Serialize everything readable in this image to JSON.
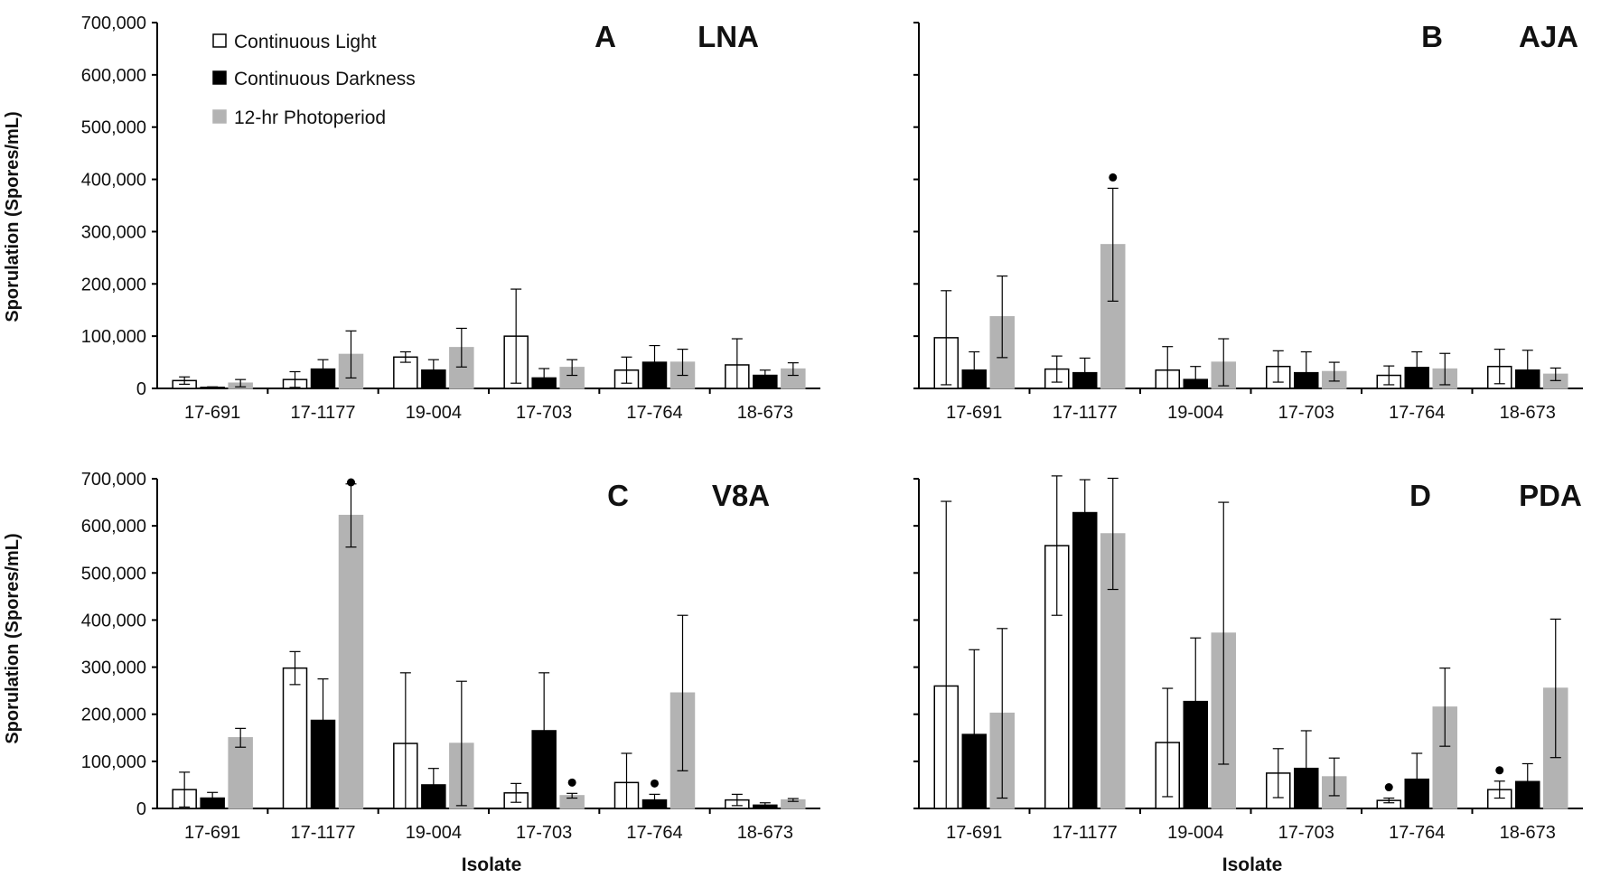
{
  "figure": {
    "x_axis_label": "Isolate",
    "y_axis_label": "Sporulation (Spores/mL)"
  },
  "legend": [
    {
      "name": "Continuous Light",
      "color": "#ffffff"
    },
    {
      "name": "Continuous Darkness",
      "color": "#000000"
    },
    {
      "name": "12-hr Photoperiod",
      "color": "#b3b3b3"
    }
  ],
  "chart_data": [
    {
      "type": "bar",
      "panel": "A",
      "medium": "LNA",
      "categories": [
        "17-691",
        "17-1177",
        "19-004",
        "17-703",
        "17-764",
        "18-673"
      ],
      "ylim": [
        0,
        700000
      ],
      "yticks": [
        "0",
        "100,000",
        "200,000",
        "300,000",
        "400,000",
        "500,000",
        "600,000",
        "700,000"
      ],
      "xlabel": "",
      "ylabel": "Sporulation (Spores/mL)",
      "series": [
        {
          "name": "Continuous Light",
          "values": [
            15000,
            17000,
            60000,
            100000,
            35000,
            45000
          ],
          "errors": [
            7000,
            15000,
            10000,
            90000,
            25000,
            50000
          ]
        },
        {
          "name": "Continuous Darkness",
          "values": [
            2000,
            37000,
            35000,
            20000,
            50000,
            25000
          ],
          "errors": [
            1000,
            18000,
            20000,
            18000,
            32000,
            10000
          ]
        },
        {
          "name": "12-hr Photoperiod",
          "values": [
            10000,
            65000,
            78000,
            40000,
            50000,
            37000
          ],
          "errors": [
            7000,
            45000,
            37000,
            15000,
            25000,
            12000
          ]
        }
      ],
      "significance": []
    },
    {
      "type": "bar",
      "panel": "B",
      "medium": "AJA",
      "categories": [
        "17-691",
        "17-1177",
        "19-004",
        "17-703",
        "17-764",
        "18-673"
      ],
      "ylim": [
        0,
        700000
      ],
      "yticks": [],
      "xlabel": "",
      "ylabel": "",
      "series": [
        {
          "name": "Continuous Light",
          "values": [
            97000,
            37000,
            35000,
            42000,
            25000,
            42000
          ],
          "errors": [
            90000,
            25000,
            45000,
            30000,
            18000,
            33000
          ]
        },
        {
          "name": "Continuous Darkness",
          "values": [
            35000,
            30000,
            17000,
            30000,
            40000,
            35000
          ],
          "errors": [
            35000,
            28000,
            25000,
            40000,
            30000,
            38000
          ]
        },
        {
          "name": "12-hr Photoperiod",
          "values": [
            137000,
            275000,
            50000,
            32000,
            37000,
            27000
          ],
          "errors": [
            78000,
            108000,
            45000,
            18000,
            30000,
            12000
          ]
        }
      ],
      "significance": [
        {
          "category_index": 1,
          "series_index": 2
        }
      ]
    },
    {
      "type": "bar",
      "panel": "C",
      "medium": "V8A",
      "categories": [
        "17-691",
        "17-1177",
        "19-004",
        "17-703",
        "17-764",
        "18-673"
      ],
      "ylim": [
        0,
        700000
      ],
      "yticks": [
        "0",
        "100,000",
        "200,000",
        "300,000",
        "400,000",
        "500,000",
        "600,000",
        "700,000"
      ],
      "xlabel": "Isolate",
      "ylabel": "Sporulation (Spores/mL)",
      "series": [
        {
          "name": "Continuous Light",
          "values": [
            40000,
            298000,
            138000,
            33000,
            55000,
            18000
          ],
          "errors": [
            37000,
            35000,
            150000,
            20000,
            62000,
            12000
          ]
        },
        {
          "name": "Continuous Darkness",
          "values": [
            22000,
            187000,
            50000,
            165000,
            18000,
            7000
          ],
          "errors": [
            12000,
            88000,
            35000,
            123000,
            12000,
            5000
          ]
        },
        {
          "name": "12-hr Photoperiod",
          "values": [
            150000,
            622000,
            138000,
            27000,
            245000,
            18000
          ],
          "errors": [
            20000,
            67000,
            132000,
            5000,
            165000,
            3000
          ]
        }
      ],
      "significance": [
        {
          "category_index": 1,
          "series_index": 2
        },
        {
          "category_index": 3,
          "series_index": 2
        },
        {
          "category_index": 4,
          "series_index": 1
        }
      ]
    },
    {
      "type": "bar",
      "panel": "D",
      "medium": "PDA",
      "categories": [
        "17-691",
        "17-1177",
        "19-004",
        "17-703",
        "17-764",
        "18-673"
      ],
      "ylim": [
        0,
        700000
      ],
      "yticks": [],
      "xlabel": "Isolate",
      "ylabel": "",
      "series": [
        {
          "name": "Continuous Light",
          "values": [
            260000,
            558000,
            140000,
            75000,
            17000,
            40000
          ],
          "errors": [
            392000,
            148000,
            115000,
            52000,
            5000,
            18000
          ]
        },
        {
          "name": "Continuous Darkness",
          "values": [
            157000,
            628000,
            227000,
            85000,
            62000,
            57000
          ],
          "errors": [
            180000,
            70000,
            135000,
            80000,
            55000,
            38000
          ]
        },
        {
          "name": "12-hr Photoperiod",
          "values": [
            202000,
            583000,
            372000,
            67000,
            215000,
            255000
          ],
          "errors": [
            180000,
            118000,
            278000,
            40000,
            83000,
            147000
          ]
        }
      ],
      "significance": [
        {
          "category_index": 4,
          "series_index": 0
        },
        {
          "category_index": 5,
          "series_index": 0
        }
      ]
    }
  ]
}
